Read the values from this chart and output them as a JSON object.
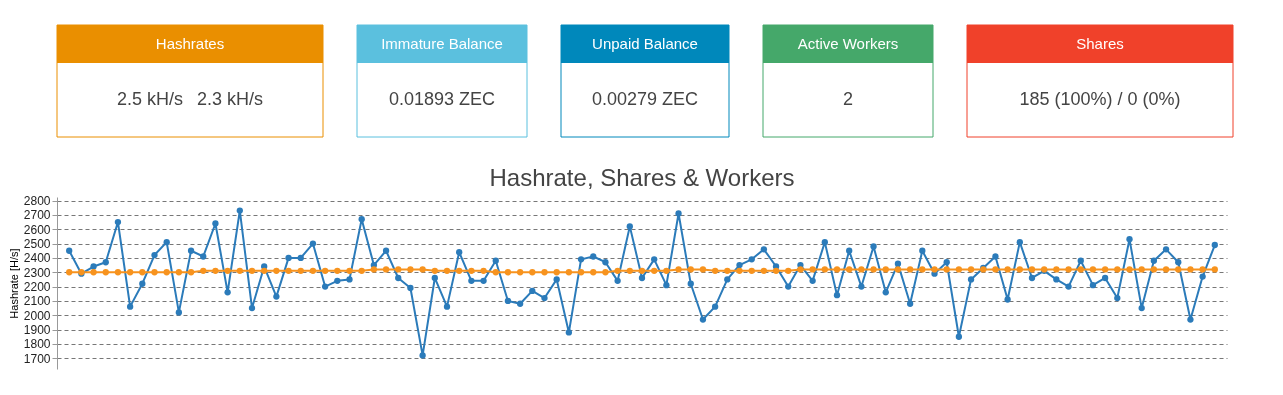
{
  "chart_data": [
    {
      "type": "other",
      "title": "Hashrates",
      "annotations": [
        "2.5 kH/s",
        "2.3 kH/s"
      ],
      "colors": [
        "#ea8f00"
      ]
    },
    {
      "type": "other",
      "title": "Immature Balance",
      "annotations": [
        "0.01893 ZEC"
      ],
      "colors": [
        "#5bc0de"
      ]
    },
    {
      "type": "other",
      "title": "Unpaid Balance",
      "annotations": [
        "0.00279 ZEC"
      ],
      "colors": [
        "#0088bb"
      ]
    },
    {
      "type": "other",
      "title": "Active Workers",
      "annotations": [
        "2"
      ],
      "colors": [
        "#45a86a"
      ]
    },
    {
      "type": "other",
      "title": "Shares",
      "annotations": [
        "185 (100%) / 0 (0%)"
      ],
      "colors": [
        "#f0412a"
      ]
    },
    {
      "type": "line",
      "title": "Hashrate, Shares & Workers",
      "ylabel": "Hashrate [H/s]",
      "categories": [
        null,
        null,
        null,
        null,
        null,
        null,
        null,
        null,
        null,
        null,
        null,
        null,
        null,
        null,
        null,
        null,
        null,
        null,
        null,
        null,
        null,
        null,
        null,
        null,
        null,
        null,
        null,
        null,
        null,
        null,
        null,
        null,
        null,
        null,
        null,
        null,
        null,
        null,
        null,
        null,
        null,
        null,
        null,
        null,
        null,
        null,
        null,
        null,
        null,
        null,
        null,
        null,
        null,
        null,
        null,
        null,
        null,
        null,
        null,
        null,
        null,
        null,
        null,
        null,
        null,
        null,
        null,
        null,
        null,
        null,
        null,
        null,
        null,
        null,
        null,
        null,
        null,
        null,
        null,
        null,
        null,
        null,
        null,
        null,
        null,
        null,
        null,
        null,
        null,
        null,
        null,
        null,
        null,
        null,
        null
      ],
      "series": [
        {
          "color": "#2b7bba",
          "values": [
            2450,
            2290,
            2340,
            2370,
            2650,
            2060,
            2220,
            2420,
            2510,
            2020,
            2450,
            2410,
            2640,
            2160,
            2730,
            2050,
            2340,
            2130,
            2400,
            2400,
            2500,
            2200,
            2240,
            2250,
            2670,
            2350,
            2450,
            2260,
            2190,
            1720,
            2260,
            2060,
            2440,
            2240,
            2240,
            2380,
            2100,
            2080,
            2170,
            2120,
            2250,
            1880,
            2390,
            2410,
            2370,
            2240,
            2620,
            2260,
            2390,
            2210,
            2710,
            2220,
            1970,
            2060,
            2250,
            2350,
            2390,
            2460,
            2340,
            2200,
            2350,
            2240,
            2510,
            2140,
            2450,
            2200,
            2480,
            2160,
            2360,
            2080,
            2450,
            2290,
            2370,
            1850,
            2250,
            2330,
            2410,
            2110,
            2510,
            2260,
            2310,
            2250,
            2200,
            2380,
            2210,
            2260,
            2120,
            2530,
            2050,
            2380,
            2460,
            2370,
            1970,
            2270,
            2490
          ]
        },
        {
          "color": "#f7931e",
          "values": [
            2300,
            2300,
            2300,
            2300,
            2300,
            2300,
            2300,
            2300,
            2300,
            2300,
            2300,
            2310,
            2310,
            2310,
            2310,
            2310,
            2310,
            2310,
            2310,
            2310,
            2310,
            2310,
            2310,
            2310,
            2310,
            2320,
            2320,
            2320,
            2320,
            2320,
            2310,
            2310,
            2310,
            2310,
            2310,
            2300,
            2300,
            2300,
            2300,
            2300,
            2300,
            2300,
            2300,
            2300,
            2300,
            2310,
            2310,
            2310,
            2310,
            2310,
            2320,
            2320,
            2320,
            2310,
            2310,
            2310,
            2310,
            2310,
            2310,
            2310,
            2320,
            2320,
            2320,
            2320,
            2320,
            2320,
            2320,
            2320,
            2320,
            2320,
            2320,
            2320,
            2320,
            2320,
            2320,
            2320,
            2320,
            2320,
            2320,
            2320,
            2320,
            2320,
            2320,
            2320,
            2320,
            2320,
            2320,
            2320,
            2320,
            2320,
            2320,
            2320,
            2320,
            2320,
            2320
          ]
        }
      ],
      "ylim": [
        1625,
        2825
      ],
      "yticks": [
        1700,
        1800,
        1900,
        2000,
        2100,
        2200,
        2300,
        2400,
        2500,
        2600,
        2700,
        2800
      ],
      "grid": "y",
      "marker": "circle",
      "line_style": "solid",
      "tick_labels": "y"
    }
  ]
}
